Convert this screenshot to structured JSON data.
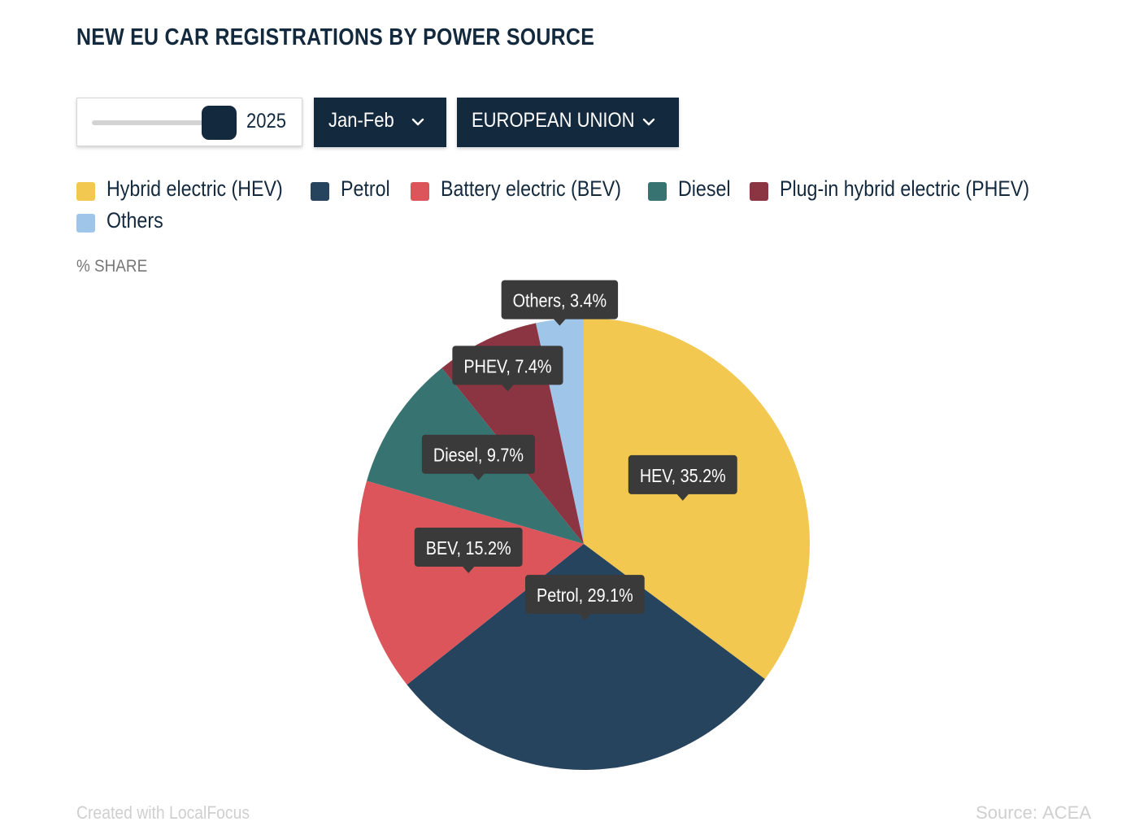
{
  "title": "NEW EU CAR REGISTRATIONS BY POWER SOURCE",
  "controls": {
    "year_slider_value": "2025",
    "period_selected": "Jan-Feb",
    "region_selected": "EUROPEAN UNION"
  },
  "share_label": "% SHARE",
  "footer": {
    "credit": "Created with LocalFocus",
    "source_prefix": "Source:",
    "source_name": "ACEA"
  },
  "chart_data": {
    "type": "pie",
    "unit": "%",
    "legend_position": "top",
    "slices": [
      {
        "legend": "Hybrid electric (HEV)",
        "label": "HEV",
        "value": 35.2,
        "display": "HEV, 35.2%",
        "color": "#f2c850"
      },
      {
        "legend": "Petrol",
        "label": "Petrol",
        "value": 29.1,
        "display": "Petrol, 29.1%",
        "color": "#27445f"
      },
      {
        "legend": "Battery electric (BEV)",
        "label": "BEV",
        "value": 15.2,
        "display": "BEV, 15.2%",
        "color": "#dc555a"
      },
      {
        "legend": "Diesel",
        "label": "Diesel",
        "value": 9.7,
        "display": "Diesel, 9.7%",
        "color": "#377371"
      },
      {
        "legend": "Plug-in hybrid electric (PHEV)",
        "label": "PHEV",
        "value": 7.4,
        "display": "PHEV, 7.4%",
        "color": "#8b3442"
      },
      {
        "legend": "Others",
        "label": "Others",
        "value": 3.4,
        "display": "Others, 3.4%",
        "color": "#9fc6e8"
      }
    ]
  }
}
